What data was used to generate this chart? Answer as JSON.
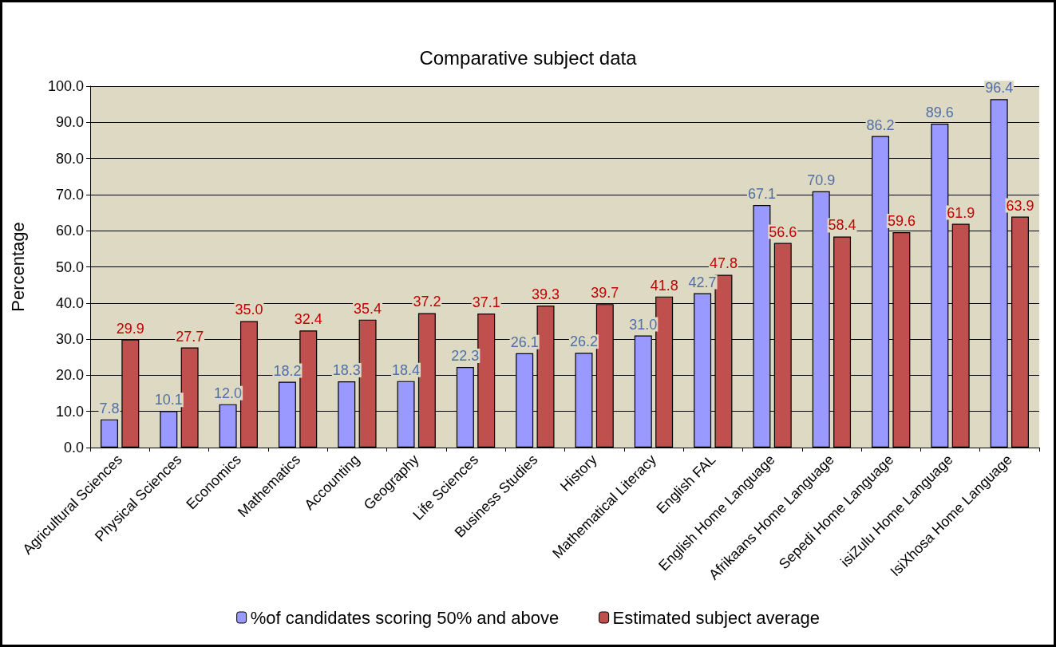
{
  "chart_data": {
    "type": "bar",
    "title": "Comparative subject data",
    "ylabel": "Percentage",
    "categories": [
      "Agricultural Sciences",
      "Physical Sciences",
      "Economics",
      "Mathematics",
      "Accounting",
      "Geography",
      "Life Sciences",
      "Business Studies",
      "History",
      "Mathematical Literacy",
      "English FAL",
      "English Home Language",
      "Afrikaans Home Language",
      "Sepedi Home Language",
      "isiZulu Home Language",
      "IsiXhosa Home Language"
    ],
    "series": [
      {
        "name": "%of candidates scoring 50% and above",
        "color": "#9999ff",
        "values": [
          7.8,
          10.1,
          12.0,
          18.2,
          18.3,
          18.4,
          22.3,
          26.1,
          26.2,
          31.0,
          42.7,
          67.1,
          70.9,
          86.2,
          89.6,
          96.4
        ],
        "value_labels": [
          "7.8",
          "10.1",
          "12.0",
          "18.2",
          "18.3",
          "18.4",
          "22.3",
          "26.1",
          "26.2",
          "31.0",
          "42.7",
          "67.1",
          "70.9",
          "86.2",
          "89.6",
          "96.4"
        ]
      },
      {
        "name": "Estimated subject average",
        "color": "#c0504d",
        "values": [
          29.9,
          27.7,
          35.0,
          32.4,
          35.4,
          37.2,
          37.1,
          39.3,
          39.7,
          41.8,
          47.8,
          56.6,
          58.4,
          59.6,
          61.9,
          63.9
        ],
        "value_labels": [
          "29.9",
          "27.7",
          "35.0",
          "32.4",
          "35.4",
          "37.2",
          "37.1",
          "39.3",
          "39.7",
          "41.8",
          "47.8",
          "56.6",
          "58.4",
          "59.6",
          "61.9",
          "63.9"
        ]
      }
    ],
    "ylim": [
      0,
      100
    ],
    "yticks": [
      {
        "value": 0,
        "label": "0.0"
      },
      {
        "value": 10,
        "label": "10.0"
      },
      {
        "value": 20,
        "label": "20.0"
      },
      {
        "value": 30,
        "label": "30.0"
      },
      {
        "value": 40,
        "label": "40.0"
      },
      {
        "value": 50,
        "label": "50.0"
      },
      {
        "value": 60,
        "label": "60.0"
      },
      {
        "value": 70,
        "label": "70.0"
      },
      {
        "value": 80,
        "label": "80.0"
      },
      {
        "value": 90,
        "label": "90.0"
      },
      {
        "value": 100,
        "label": "100.0"
      }
    ],
    "grid": "y",
    "legend": "bottom"
  }
}
